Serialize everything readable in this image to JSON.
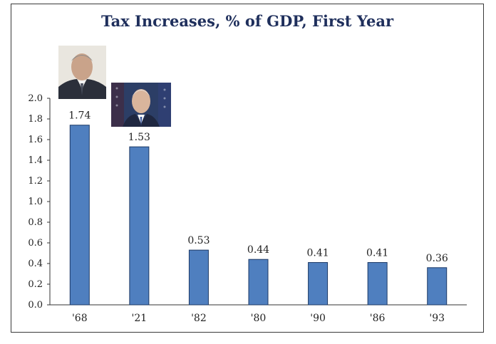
{
  "chart_data": {
    "type": "bar",
    "title": "Tax Increases, % of GDP, First Year",
    "xlabel": "",
    "ylabel": "",
    "categories": [
      "'68",
      "'21",
      "'82",
      "'80",
      "'90",
      "'86",
      "'93"
    ],
    "values": [
      1.74,
      1.53,
      0.53,
      0.44,
      0.41,
      0.41,
      0.36
    ],
    "data_labels": [
      "1.74",
      "1.53",
      "0.53",
      "0.44",
      "0.41",
      "0.41",
      "0.36"
    ],
    "ylim": [
      0,
      2.0
    ],
    "yticks": [
      "0.0",
      "0.2",
      "0.4",
      "0.6",
      "0.8",
      "1.0",
      "1.2",
      "1.4",
      "1.6",
      "1.8",
      "2.0"
    ],
    "grid": false,
    "bar_color": "#4f7fbf",
    "bar_edge_color": "#1e3a66"
  },
  "images": {
    "photo1": "portrait-photo",
    "photo2": "portrait-photo"
  }
}
